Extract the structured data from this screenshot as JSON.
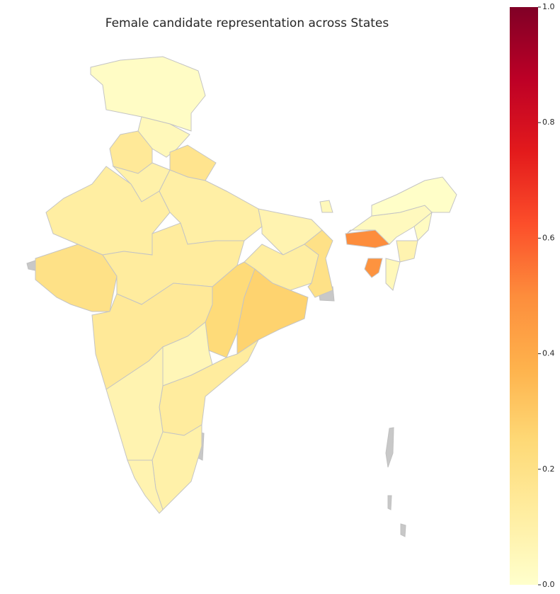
{
  "chart_data": {
    "type": "choropleth",
    "title": "Female candidate representation across States",
    "values": [
      0.02,
      0.05,
      0.15,
      0.18,
      0.1,
      0.12,
      0.11,
      0.2,
      0.13,
      0.08,
      0.12,
      0.2,
      0.24,
      0.27,
      0.15,
      0.06,
      0.13,
      0.08,
      0.1,
      0.08,
      0.05,
      0.04,
      0.01,
      0.5,
      0.03,
      0.08,
      0.05,
      0.48
    ],
    "colorscale": [
      "#ffffcc",
      "#ffeda0",
      "#fed976",
      "#feb24c",
      "#fd8d3c",
      "#fc4e2a",
      "#e31a1c",
      "#bd0026",
      "#800026"
    ],
    "clim": [
      0,
      1
    ],
    "cticks": [
      {
        "value": 0,
        "label": "0.0"
      },
      0.2,
      0.4,
      0.6,
      0.8,
      {
        "value": 1,
        "label": "1.0"
      }
    ]
  }
}
